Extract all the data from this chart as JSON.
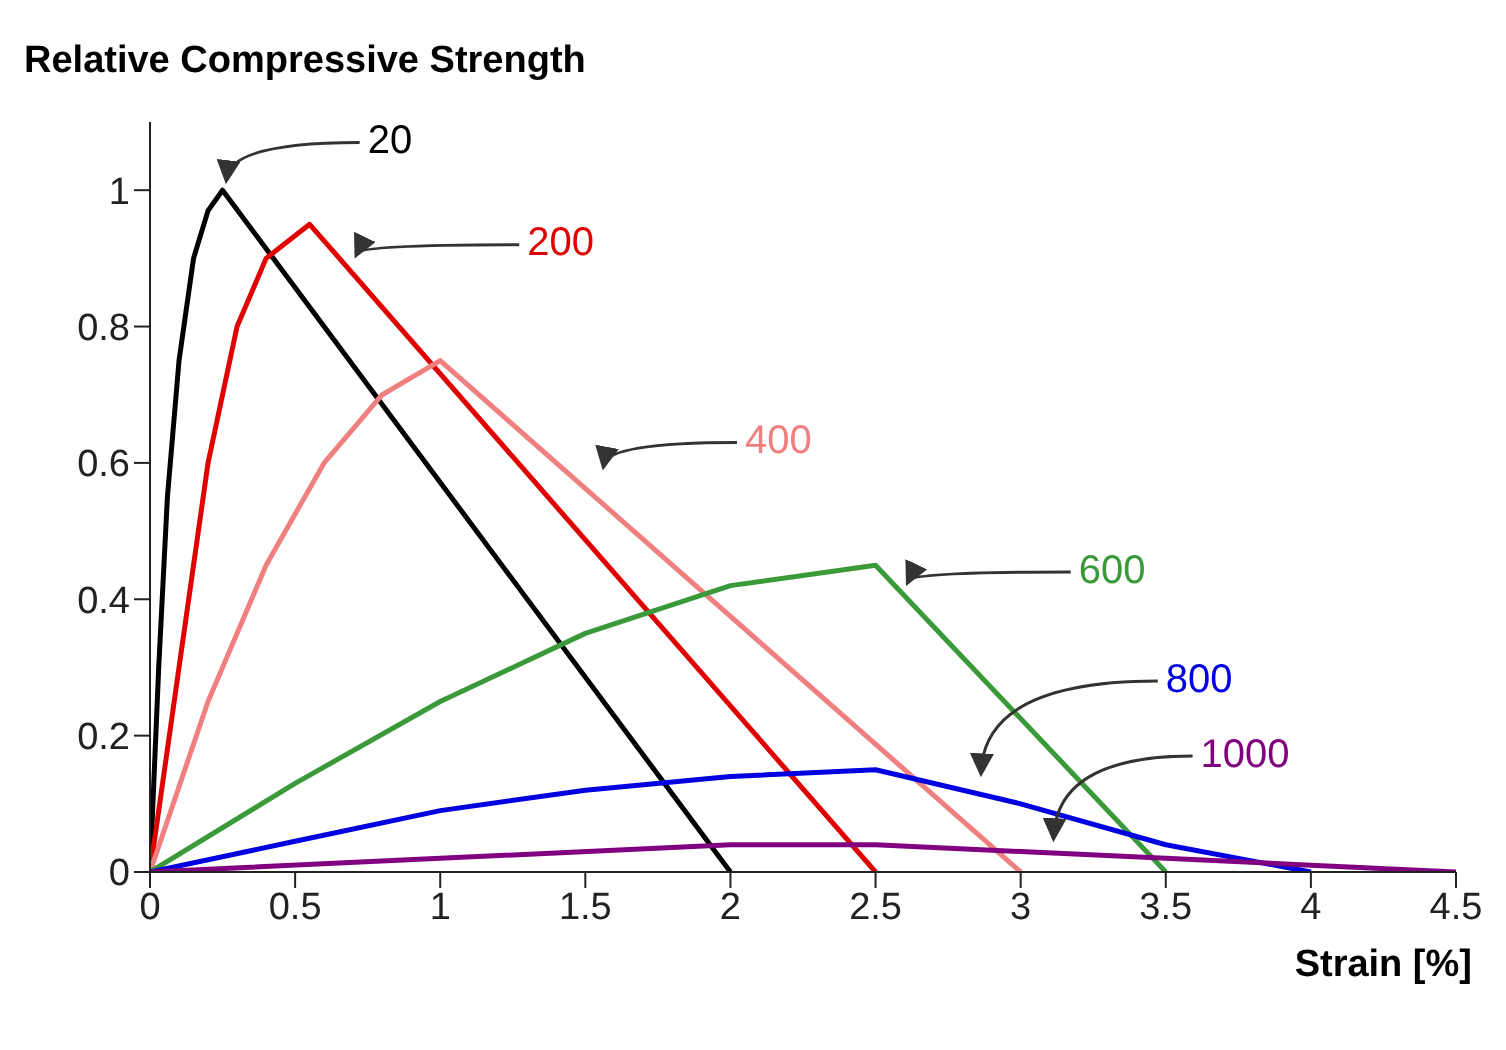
{
  "chart_data": {
    "type": "line",
    "title": "Relative Compressive Strength",
    "xlabel": "Strain [%]",
    "xlim": [
      0,
      4.5
    ],
    "xticks": [
      0,
      0.5,
      1,
      1.5,
      2,
      2.5,
      3,
      3.5,
      4,
      4.5
    ],
    "ylim": [
      0,
      1.1
    ],
    "yticks": [
      0,
      0.2,
      0.4,
      0.6,
      0.8,
      1
    ],
    "grid": false,
    "legend": false,
    "marker": "none",
    "line_style": "solid",
    "series": [
      {
        "name": "20",
        "color": "#000000",
        "x": [
          0,
          0.03,
          0.06,
          0.1,
          0.15,
          0.2,
          0.25,
          2.0
        ],
        "values": [
          0,
          0.3,
          0.55,
          0.75,
          0.9,
          0.97,
          1.0,
          0
        ]
      },
      {
        "name": "200",
        "color": "#e00000",
        "x": [
          0,
          0.1,
          0.2,
          0.3,
          0.4,
          0.55,
          2.5
        ],
        "values": [
          0,
          0.3,
          0.6,
          0.8,
          0.9,
          0.95,
          0
        ]
      },
      {
        "name": "400",
        "color": "#f08080",
        "x": [
          0,
          0.2,
          0.4,
          0.6,
          0.8,
          1.0,
          3.0
        ],
        "values": [
          0,
          0.25,
          0.45,
          0.6,
          0.7,
          0.75,
          0
        ]
      },
      {
        "name": "600",
        "color": "#3a9a3a",
        "x": [
          0,
          0.5,
          1,
          1.5,
          2,
          2.5,
          3.5
        ],
        "values": [
          0,
          0.13,
          0.25,
          0.35,
          0.42,
          0.45,
          0
        ]
      },
      {
        "name": "800",
        "color": "#0000e0",
        "x": [
          0,
          0.5,
          1,
          1.5,
          2,
          2.5,
          3,
          3.5,
          4
        ],
        "values": [
          0,
          0.045,
          0.09,
          0.12,
          0.14,
          0.15,
          0.1,
          0.04,
          0
        ]
      },
      {
        "name": "1000",
        "color": "#800080",
        "x": [
          0,
          1,
          2,
          2.5,
          3,
          3.5,
          4,
          4.5
        ],
        "values": [
          0,
          0.02,
          0.04,
          0.04,
          0.03,
          0.02,
          0.01,
          0
        ]
      }
    ]
  }
}
